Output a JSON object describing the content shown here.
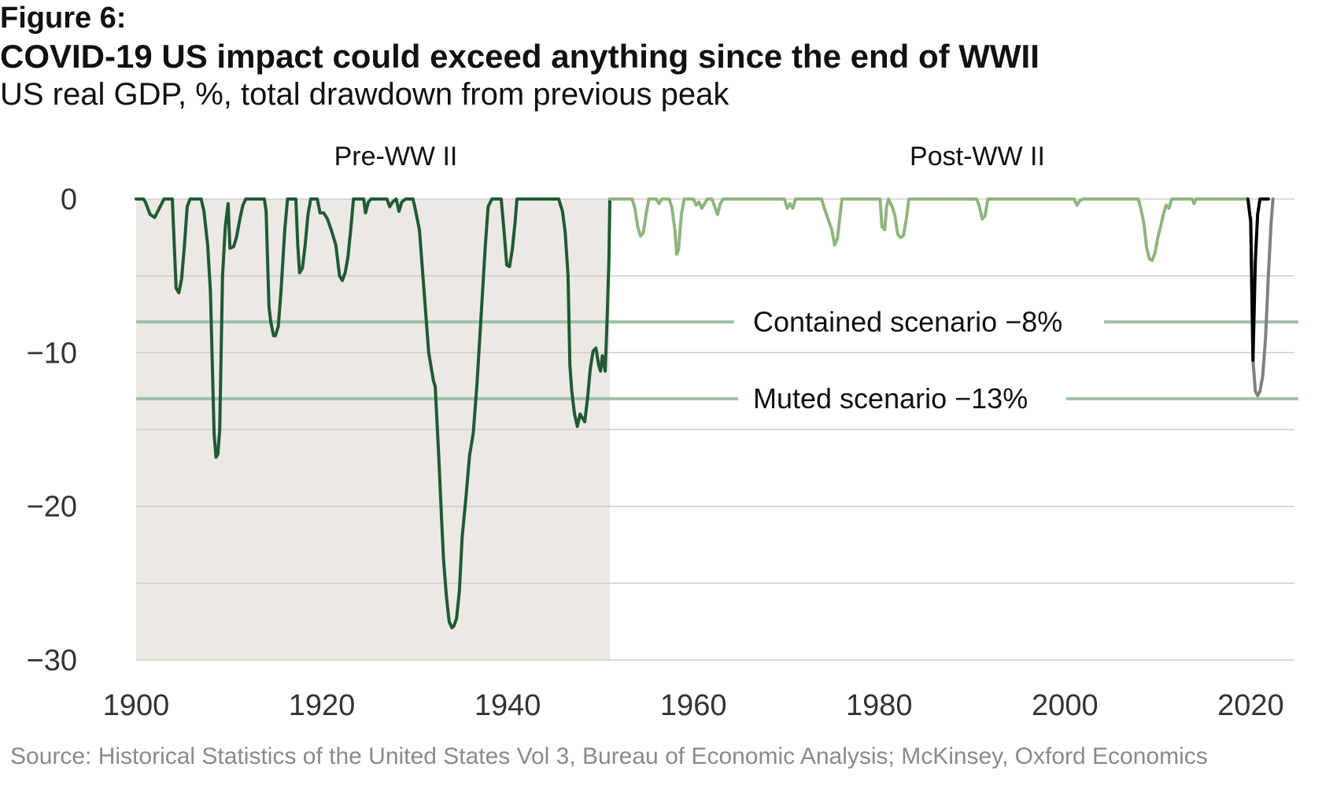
{
  "figure_label": "Figure 6:",
  "title": "COVID-19 US impact could exceed anything since the end of WWII",
  "subtitle": "US real GDP, %, total drawdown from previous peak",
  "source": "Source: Historical Statistics of the United States Vol 3, Bureau of Economic Analysis; McKinsey, Oxford Economics",
  "colors": {
    "pre_ww2_line": "#1f5a32",
    "post_ww2_line": "#8fb57e",
    "covid_actual": "#000000",
    "covid_projection": "#808080",
    "scenario_line": "#9fbfaa",
    "shade": "#ece9e4",
    "grid": "#c8c8c8"
  },
  "chart_data": {
    "type": "line",
    "title": "COVID-19 US impact could exceed anything since the end of WWII",
    "ylabel": "US real GDP, %, total drawdown from previous peak",
    "xlim": [
      1900,
      2022
    ],
    "ylim": [
      -30,
      0
    ],
    "x_ticks": [
      1900,
      1920,
      1940,
      1960,
      1980,
      2000,
      2020
    ],
    "x_tick_labels": [
      "1900",
      "1920",
      "1940",
      "1960",
      "1980",
      "2000",
      "2020"
    ],
    "y_ticks": [
      0,
      -10,
      -20,
      -30
    ],
    "y_tick_labels": [
      "0",
      "−10",
      "−20",
      "−30"
    ],
    "grid": true,
    "shaded_region": {
      "label": "Pre-WW II",
      "x_range": [
        1900,
        1951
      ]
    },
    "unshaded_label": "Post-WW II",
    "reference_lines": [
      {
        "label": "Contained scenario −8%",
        "value": -8
      },
      {
        "label": "Muted scenario −13%",
        "value": -13
      }
    ],
    "series": [
      {
        "name": "Pre-WW II drawdown",
        "points": [
          [
            1900,
            0
          ],
          [
            1900.8,
            0
          ],
          [
            1901,
            -0.2
          ],
          [
            1901.5,
            -1
          ],
          [
            1902,
            -1.2
          ],
          [
            1902.5,
            -0.6
          ],
          [
            1903,
            0
          ],
          [
            1903.9,
            0
          ],
          [
            1904,
            -1.5
          ],
          [
            1904.3,
            -5.8
          ],
          [
            1904.6,
            -6.1
          ],
          [
            1904.9,
            -5.2
          ],
          [
            1905.2,
            -3
          ],
          [
            1905.5,
            -0.5
          ],
          [
            1905.8,
            0
          ],
          [
            1907,
            0
          ],
          [
            1907.3,
            -0.8
          ],
          [
            1907.7,
            -3
          ],
          [
            1908,
            -6
          ],
          [
            1908.4,
            -15.3
          ],
          [
            1908.6,
            -16.8
          ],
          [
            1908.8,
            -16.6
          ],
          [
            1909,
            -15
          ],
          [
            1909.3,
            -5
          ],
          [
            1909.6,
            -1.8
          ],
          [
            1909.9,
            -0.3
          ],
          [
            1910.1,
            -3.2
          ],
          [
            1910.5,
            -3.1
          ],
          [
            1910.8,
            -2.5
          ],
          [
            1911.2,
            -1.2
          ],
          [
            1911.5,
            -0.4
          ],
          [
            1911.8,
            0
          ],
          [
            1913.8,
            0
          ],
          [
            1914,
            -0.8
          ],
          [
            1914.3,
            -7
          ],
          [
            1914.5,
            -8
          ],
          [
            1914.8,
            -8.9
          ],
          [
            1915,
            -8.9
          ],
          [
            1915.3,
            -8.3
          ],
          [
            1915.6,
            -6
          ],
          [
            1916,
            -2
          ],
          [
            1916.3,
            0
          ],
          [
            1917.2,
            0
          ],
          [
            1917.4,
            -3
          ],
          [
            1917.6,
            -4.8
          ],
          [
            1917.9,
            -4.5
          ],
          [
            1918.2,
            -3
          ],
          [
            1918.5,
            -1
          ],
          [
            1918.8,
            0
          ],
          [
            1919.5,
            0
          ],
          [
            1919.8,
            -0.9
          ],
          [
            1920.2,
            -0.9
          ],
          [
            1920.6,
            -1.3
          ],
          [
            1921,
            -2
          ],
          [
            1921.5,
            -3
          ],
          [
            1921.9,
            -5
          ],
          [
            1922.2,
            -5.3
          ],
          [
            1922.5,
            -4.8
          ],
          [
            1922.8,
            -3.8
          ],
          [
            1923.1,
            -2
          ],
          [
            1923.4,
            0
          ],
          [
            1924.5,
            0
          ],
          [
            1924.7,
            -0.9
          ],
          [
            1925,
            -0.2
          ],
          [
            1925.3,
            0
          ],
          [
            1927,
            0
          ],
          [
            1927.3,
            -0.5
          ],
          [
            1927.6,
            -0.2
          ],
          [
            1928,
            0
          ],
          [
            1928.3,
            -0.8
          ],
          [
            1928.6,
            -0.2
          ],
          [
            1929,
            0
          ],
          [
            1929.8,
            0
          ],
          [
            1930,
            -0.5
          ],
          [
            1930.5,
            -2
          ],
          [
            1931,
            -6
          ],
          [
            1931.5,
            -10
          ],
          [
            1932,
            -11.8
          ],
          [
            1932.2,
            -12.2
          ],
          [
            1932.6,
            -17
          ],
          [
            1932.9,
            -21
          ],
          [
            1933.1,
            -23.5
          ],
          [
            1933.4,
            -25.8
          ],
          [
            1933.7,
            -27.5
          ],
          [
            1934,
            -27.9
          ],
          [
            1934.2,
            -27.8
          ],
          [
            1934.5,
            -27.3
          ],
          [
            1934.8,
            -25.5
          ],
          [
            1935.1,
            -22
          ],
          [
            1935.5,
            -19.5
          ],
          [
            1935.9,
            -16.7
          ],
          [
            1936.3,
            -15.2
          ],
          [
            1936.7,
            -12
          ],
          [
            1937.2,
            -7
          ],
          [
            1937.6,
            -3
          ],
          [
            1937.9,
            -0.5
          ],
          [
            1938.3,
            0
          ],
          [
            1939.3,
            0
          ],
          [
            1939.6,
            -2
          ],
          [
            1939.9,
            -4.3
          ],
          [
            1940.2,
            -4.4
          ],
          [
            1940.5,
            -3.3
          ],
          [
            1940.8,
            -1.5
          ],
          [
            1941,
            0
          ],
          [
            1945.5,
            0
          ],
          [
            1945.9,
            -0.8
          ],
          [
            1946.2,
            -2.2
          ],
          [
            1946.5,
            -5
          ],
          [
            1946.7,
            -10.8
          ],
          [
            1946.9,
            -12.5
          ],
          [
            1947.2,
            -14
          ],
          [
            1947.5,
            -14.8
          ],
          [
            1947.8,
            -14
          ],
          [
            1948,
            -14.2
          ],
          [
            1948.3,
            -14.5
          ],
          [
            1948.6,
            -13
          ],
          [
            1948.9,
            -11
          ],
          [
            1949.2,
            -9.9
          ],
          [
            1949.5,
            -9.7
          ],
          [
            1949.8,
            -10.8
          ],
          [
            1950,
            -11.2
          ],
          [
            1950.2,
            -10.2
          ],
          [
            1950.5,
            -11.2
          ],
          [
            1950.7,
            -8
          ],
          [
            1950.9,
            -4
          ],
          [
            1951,
            0
          ]
        ]
      },
      {
        "name": "Post-WW II drawdown",
        "points": [
          [
            1951,
            0
          ],
          [
            1953.4,
            0
          ],
          [
            1953.7,
            -0.6
          ],
          [
            1954,
            -1.8
          ],
          [
            1954.3,
            -2.4
          ],
          [
            1954.6,
            -2.2
          ],
          [
            1954.9,
            -1
          ],
          [
            1955.2,
            0
          ],
          [
            1956,
            0
          ],
          [
            1956.3,
            -0.3
          ],
          [
            1956.6,
            0
          ],
          [
            1957.4,
            0
          ],
          [
            1957.7,
            -0.6
          ],
          [
            1958,
            -2
          ],
          [
            1958.2,
            -3.6
          ],
          [
            1958.4,
            -3.3
          ],
          [
            1958.7,
            -1
          ],
          [
            1959,
            0
          ],
          [
            1960,
            0
          ],
          [
            1960.3,
            -0.4
          ],
          [
            1960.6,
            -0.2
          ],
          [
            1960.9,
            -0.6
          ],
          [
            1961.2,
            -0.3
          ],
          [
            1961.5,
            0
          ],
          [
            1962,
            0
          ],
          [
            1962.3,
            -0.5
          ],
          [
            1962.6,
            -1
          ],
          [
            1962.9,
            -0.3
          ],
          [
            1963.2,
            0
          ],
          [
            1969.8,
            0
          ],
          [
            1970.1,
            -0.6
          ],
          [
            1970.4,
            -0.3
          ],
          [
            1970.7,
            -0.6
          ],
          [
            1971,
            0
          ],
          [
            1973.8,
            0
          ],
          [
            1974.1,
            -0.6
          ],
          [
            1974.5,
            -1.3
          ],
          [
            1974.9,
            -2
          ],
          [
            1975.2,
            -3
          ],
          [
            1975.5,
            -2.6
          ],
          [
            1975.8,
            -1
          ],
          [
            1976,
            0
          ],
          [
            1980.1,
            0
          ],
          [
            1980.3,
            -1.8
          ],
          [
            1980.6,
            -2
          ],
          [
            1980.8,
            -0.5
          ],
          [
            1981,
            0
          ],
          [
            1981.4,
            -0.5
          ],
          [
            1981.7,
            -1.1
          ],
          [
            1982,
            -2.3
          ],
          [
            1982.3,
            -2.5
          ],
          [
            1982.6,
            -2.4
          ],
          [
            1982.9,
            -1.4
          ],
          [
            1983.2,
            0
          ],
          [
            1990.5,
            0
          ],
          [
            1990.8,
            -0.5
          ],
          [
            1991.1,
            -1.3
          ],
          [
            1991.4,
            -1.1
          ],
          [
            1991.7,
            0
          ],
          [
            2001,
            0
          ],
          [
            2001.3,
            -0.4
          ],
          [
            2001.6,
            -0.1
          ],
          [
            2002,
            0
          ],
          [
            2007.9,
            0
          ],
          [
            2008.2,
            -0.7
          ],
          [
            2008.5,
            -1.6
          ],
          [
            2008.8,
            -3.2
          ],
          [
            2009.1,
            -3.9
          ],
          [
            2009.4,
            -4
          ],
          [
            2009.7,
            -3.5
          ],
          [
            2010,
            -2.5
          ],
          [
            2010.3,
            -1.8
          ],
          [
            2010.6,
            -1
          ],
          [
            2010.9,
            -0.4
          ],
          [
            2011.2,
            -0.6
          ],
          [
            2011.5,
            0
          ],
          [
            2013.7,
            0
          ],
          [
            2013.9,
            -0.3
          ],
          [
            2014.1,
            0
          ],
          [
            2019.7,
            0
          ]
        ]
      },
      {
        "name": "COVID-19 actual",
        "points": [
          [
            2019.7,
            0
          ],
          [
            2020,
            -1.5
          ],
          [
            2020.25,
            -10.5
          ],
          [
            2020.5,
            -4
          ],
          [
            2020.75,
            -1
          ],
          [
            2021,
            0
          ],
          [
            2021.5,
            0
          ],
          [
            2021.9,
            0
          ]
        ]
      },
      {
        "name": "COVID-19 muted scenario projection",
        "points": [
          [
            2020,
            -1.2
          ],
          [
            2020.25,
            -10.5
          ],
          [
            2020.5,
            -12.5
          ],
          [
            2020.75,
            -12.8
          ],
          [
            2021,
            -12.5
          ],
          [
            2021.3,
            -11.5
          ],
          [
            2021.6,
            -9
          ],
          [
            2021.9,
            -5
          ],
          [
            2022.2,
            -1.5
          ],
          [
            2022.4,
            0
          ]
        ]
      }
    ]
  }
}
